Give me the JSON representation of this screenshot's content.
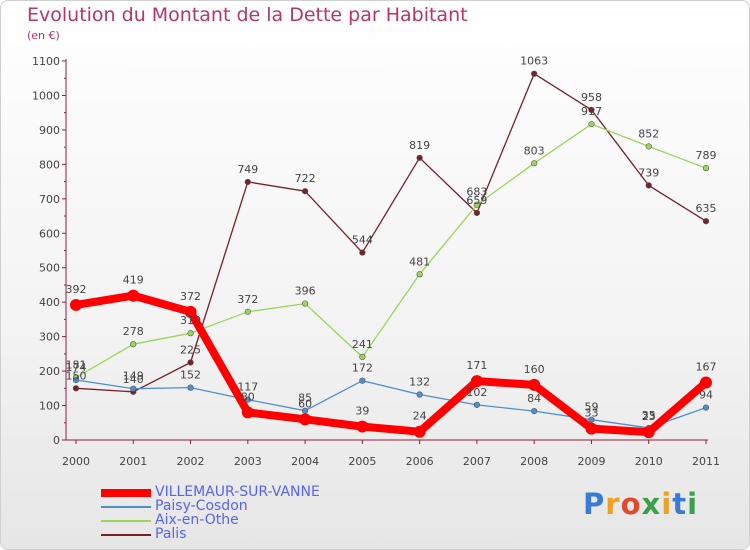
{
  "title": "Evolution du Montant de la Dette par Habitant",
  "subtitle": "(en €)",
  "logo": {
    "text": "Proxiti",
    "colors": [
      "#3a7bd5",
      "#f0a020",
      "#e04a2a",
      "#3aa04a",
      "#f0a020",
      "#3a7bd5",
      "#3aa04a"
    ]
  },
  "chart_data": {
    "type": "line",
    "title": "Evolution du Montant de la Dette par Habitant",
    "ylabel": "(en €)",
    "xlabel": "",
    "ylim": [
      0,
      1100
    ],
    "yticks": [
      "0",
      "100",
      "200",
      "300",
      "400",
      "500",
      "600",
      "700",
      "800",
      "900",
      "1000",
      "1100"
    ],
    "x": [
      "2000",
      "2001",
      "2002",
      "2003",
      "2004",
      "2005",
      "2006",
      "2007",
      "2008",
      "2009",
      "2010",
      "2011"
    ],
    "grid": false,
    "legend_position": "bottom-left",
    "series": [
      {
        "name": "Palis",
        "color": "#7a1f28",
        "line_width": 1.3,
        "marker": 2.8,
        "values": [
          150,
          140,
          225,
          749,
          722,
          544,
          819,
          659,
          1063,
          958,
          739,
          635
        ]
      },
      {
        "name": "Aix-en-Othe",
        "color": "#9ad65a",
        "line_width": 1.3,
        "marker": 2.8,
        "values": [
          181,
          278,
          310,
          372,
          396,
          241,
          481,
          683,
          803,
          917,
          852,
          789
        ]
      },
      {
        "name": "Paisy-Cosdon",
        "color": "#4f8fd0",
        "line_width": 1.3,
        "marker": 2.8,
        "values": [
          174,
          149,
          152,
          117,
          85,
          172,
          132,
          102,
          84,
          59,
          35,
          94
        ]
      },
      {
        "name": "VILLEMAUR-SUR-VANNE",
        "color": "#ff0000",
        "line_width": 8,
        "marker": 6,
        "values": [
          392,
          419,
          372,
          80,
          60,
          39,
          24,
          171,
          160,
          33,
          23,
          167
        ]
      }
    ],
    "legend_order": [
      "VILLEMAUR-SUR-VANNE",
      "Paisy-Cosdon",
      "Aix-en-Othe",
      "Palis"
    ]
  }
}
